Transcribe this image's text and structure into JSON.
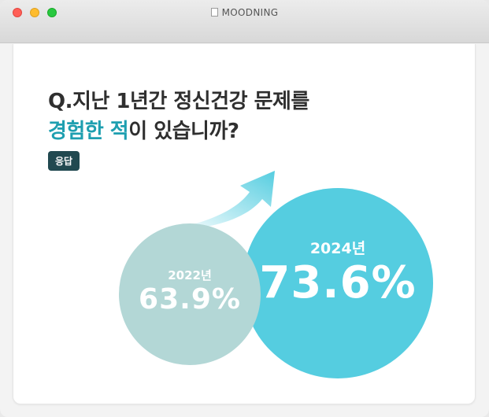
{
  "window": {
    "title": "MOODNING",
    "icon": "document-icon"
  },
  "question": {
    "prefix": "Q.",
    "line1": "지난 1년간 정신건강 문제를",
    "line2_accent": "경험한 적",
    "line2_rest": "이 있습니까?"
  },
  "badge": "응답",
  "results": [
    {
      "year": "2022년",
      "value": "63.9%",
      "percent": 63.9,
      "color": "#b3d7d6"
    },
    {
      "year": "2024년",
      "value": "73.6%",
      "percent": 73.6,
      "color": "#55cde0"
    }
  ],
  "colors": {
    "accent": "#1e9fb0",
    "badge_bg": "#214950",
    "arrow": "#55cde0"
  }
}
